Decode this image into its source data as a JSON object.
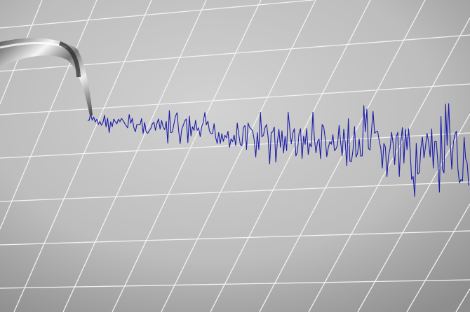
{
  "scene": {
    "subject": "seismograph",
    "paper_color": "#c4c4c4",
    "grid_color": "#f2f2f2",
    "trace_color": "#1c1ca8",
    "watermark": ""
  }
}
